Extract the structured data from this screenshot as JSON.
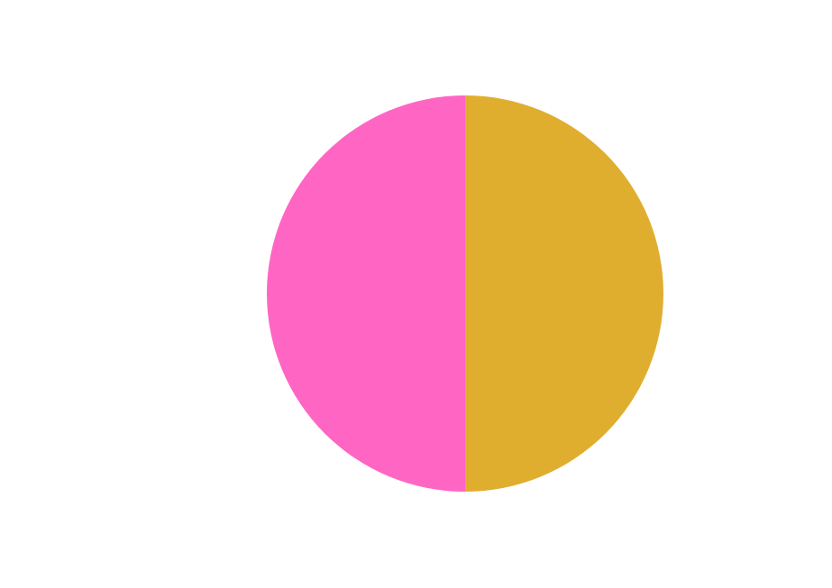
{
  "chart_data": {
    "type": "pie",
    "title": "",
    "values": [
      50,
      50
    ],
    "colors": [
      "#E0AE2F",
      "#FF66C4"
    ],
    "start_angle_deg": 0,
    "direction": "clockwise",
    "legend": "none"
  }
}
